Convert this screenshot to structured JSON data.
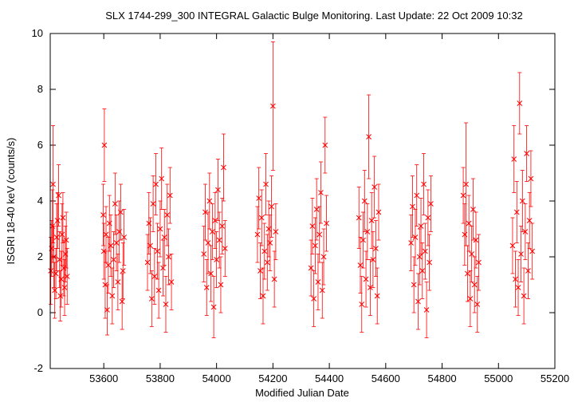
{
  "chart_data": {
    "type": "scatter",
    "title": "SLX 1744-299_300   INTEGRAL Galactic Bulge Monitoring.  Last Update: 22 Oct 2009 10:32",
    "xlabel": "Modified Julian Date",
    "ylabel": "ISGRI 18-40 keV (counts/s)",
    "xlim": [
      53410,
      55200
    ],
    "ylim": [
      -2,
      10
    ],
    "x_ticks": [
      53600,
      53800,
      54000,
      54200,
      54400,
      54600,
      54800,
      55000,
      55200
    ],
    "y_ticks": [
      -2,
      0,
      2,
      4,
      6,
      8,
      10
    ],
    "grid": false,
    "marker": "x",
    "color": "#ff0000",
    "series": [
      {
        "points": [
          [
            53412,
            1.5,
            1.2
          ],
          [
            53415,
            2.3,
            1.0
          ],
          [
            53418,
            3.1,
            1.3
          ],
          [
            53420,
            4.6,
            2.1
          ],
          [
            53423,
            2.0,
            1.1
          ],
          [
            53426,
            0.8,
            1.0
          ],
          [
            53430,
            1.4,
            0.9
          ],
          [
            53433,
            2.7,
            1.2
          ],
          [
            53436,
            3.3,
            1.0
          ],
          [
            53440,
            4.2,
            1.1
          ],
          [
            53443,
            1.9,
            1.0
          ],
          [
            53446,
            0.6,
            0.9
          ],
          [
            53449,
            1.2,
            1.0
          ],
          [
            53452,
            2.8,
            1.1
          ],
          [
            53455,
            3.4,
            0.9
          ],
          [
            53458,
            1.6,
            1.0
          ],
          [
            53461,
            0.9,
            1.0
          ],
          [
            53464,
            2.1,
            1.0
          ],
          [
            53467,
            2.6,
            1.0
          ],
          [
            53470,
            1.3,
            1.0
          ],
          [
            53598,
            3.5,
            1.1
          ],
          [
            53600,
            2.2,
            1.0
          ],
          [
            53602,
            6.0,
            1.3
          ],
          [
            53605,
            1.0,
            1.2
          ],
          [
            53608,
            2.8,
            1.0
          ],
          [
            53612,
            0.1,
            0.9
          ],
          [
            53616,
            1.7,
            1.0
          ],
          [
            53620,
            3.2,
            1.0
          ],
          [
            53625,
            2.4,
            1.1
          ],
          [
            53630,
            0.6,
            1.0
          ],
          [
            53635,
            1.9,
            1.0
          ],
          [
            53640,
            3.9,
            1.1
          ],
          [
            53645,
            2.5,
            1.0
          ],
          [
            53650,
            1.1,
            1.0
          ],
          [
            53655,
            2.9,
            1.1
          ],
          [
            53660,
            3.6,
            1.0
          ],
          [
            53665,
            0.4,
            1.0
          ],
          [
            53668,
            1.5,
            1.0
          ],
          [
            53672,
            2.7,
            1.0
          ],
          [
            53755,
            1.8,
            1.0
          ],
          [
            53760,
            3.2,
            1.1
          ],
          [
            53765,
            2.4,
            1.0
          ],
          [
            53770,
            0.5,
            1.0
          ],
          [
            53775,
            3.9,
            1.0
          ],
          [
            53780,
            1.3,
            1.0
          ],
          [
            53785,
            4.6,
            1.1
          ],
          [
            53790,
            2.2,
            1.0
          ],
          [
            53795,
            0.8,
            1.0
          ],
          [
            53800,
            3.0,
            1.0
          ],
          [
            53805,
            4.8,
            1.1
          ],
          [
            53810,
            1.6,
            1.0
          ],
          [
            53815,
            2.7,
            1.0
          ],
          [
            53820,
            0.3,
            1.0
          ],
          [
            53825,
            3.5,
            1.1
          ],
          [
            53830,
            2.0,
            1.0
          ],
          [
            53835,
            4.2,
            1.0
          ],
          [
            53840,
            1.1,
            1.0
          ],
          [
            53955,
            2.1,
            1.0
          ],
          [
            53960,
            3.6,
            1.0
          ],
          [
            53965,
            0.9,
            1.0
          ],
          [
            53970,
            2.5,
            1.1
          ],
          [
            53975,
            4.0,
            1.0
          ],
          [
            53980,
            1.4,
            1.0
          ],
          [
            53985,
            2.9,
            1.0
          ],
          [
            53990,
            0.2,
            1.1
          ],
          [
            53995,
            3.3,
            1.0
          ],
          [
            54000,
            1.9,
            1.0
          ],
          [
            54005,
            4.4,
            1.1
          ],
          [
            54010,
            2.6,
            1.0
          ],
          [
            54015,
            1.0,
            1.0
          ],
          [
            54020,
            3.1,
            1.0
          ],
          [
            54025,
            5.2,
            1.2
          ],
          [
            54030,
            2.3,
            1.0
          ],
          [
            54145,
            2.8,
            1.0
          ],
          [
            54150,
            4.1,
            1.1
          ],
          [
            54155,
            1.5,
            1.0
          ],
          [
            54160,
            3.4,
            1.0
          ],
          [
            54165,
            0.6,
            1.0
          ],
          [
            54170,
            2.2,
            1.0
          ],
          [
            54175,
            4.6,
            1.1
          ],
          [
            54180,
            1.8,
            1.0
          ],
          [
            54185,
            3.0,
            1.0
          ],
          [
            54190,
            2.5,
            1.0
          ],
          [
            54195,
            3.8,
            1.1
          ],
          [
            54200,
            7.4,
            2.3
          ],
          [
            54205,
            1.2,
            1.0
          ],
          [
            54210,
            2.9,
            1.0
          ],
          [
            54335,
            1.6,
            1.0
          ],
          [
            54340,
            3.1,
            1.0
          ],
          [
            54345,
            0.5,
            1.0
          ],
          [
            54350,
            2.4,
            1.0
          ],
          [
            54355,
            3.7,
            1.1
          ],
          [
            54360,
            1.1,
            1.0
          ],
          [
            54365,
            2.8,
            1.0
          ],
          [
            54370,
            4.3,
            1.1
          ],
          [
            54375,
            0.8,
            1.0
          ],
          [
            54380,
            2.0,
            1.0
          ],
          [
            54385,
            6.0,
            1.0
          ],
          [
            54390,
            3.2,
            1.0
          ],
          [
            54505,
            3.4,
            1.1
          ],
          [
            54510,
            1.7,
            1.0
          ],
          [
            54515,
            0.3,
            1.0
          ],
          [
            54520,
            2.6,
            1.0
          ],
          [
            54525,
            4.0,
            1.1
          ],
          [
            54530,
            1.2,
            1.0
          ],
          [
            54535,
            2.9,
            1.0
          ],
          [
            54540,
            6.3,
            1.5
          ],
          [
            54545,
            0.9,
            1.0
          ],
          [
            54550,
            3.3,
            1.0
          ],
          [
            54555,
            1.9,
            1.0
          ],
          [
            54560,
            4.5,
            1.1
          ],
          [
            54565,
            2.3,
            1.0
          ],
          [
            54570,
            0.6,
            1.0
          ],
          [
            54575,
            3.6,
            1.0
          ],
          [
            54690,
            2.5,
            1.0
          ],
          [
            54695,
            3.8,
            1.1
          ],
          [
            54700,
            1.0,
            1.0
          ],
          [
            54705,
            2.7,
            1.0
          ],
          [
            54710,
            4.2,
            1.1
          ],
          [
            54715,
            0.4,
            1.0
          ],
          [
            54720,
            2.0,
            1.0
          ],
          [
            54725,
            3.1,
            1.0
          ],
          [
            54730,
            1.5,
            1.0
          ],
          [
            54735,
            4.6,
            1.1
          ],
          [
            54740,
            2.2,
            1.0
          ],
          [
            54745,
            0.1,
            1.0
          ],
          [
            54750,
            3.4,
            1.0
          ],
          [
            54755,
            1.8,
            1.0
          ],
          [
            54760,
            3.9,
            1.0
          ],
          [
            54875,
            4.2,
            1.0
          ],
          [
            54880,
            2.8,
            1.1
          ],
          [
            54885,
            4.6,
            2.2
          ],
          [
            54890,
            1.4,
            1.0
          ],
          [
            54895,
            3.2,
            1.0
          ],
          [
            54900,
            0.5,
            1.0
          ],
          [
            54905,
            2.1,
            1.0
          ],
          [
            54910,
            3.7,
            1.1
          ],
          [
            54915,
            1.0,
            1.0
          ],
          [
            54920,
            2.6,
            1.0
          ],
          [
            54925,
            0.3,
            1.0
          ],
          [
            54930,
            1.8,
            1.0
          ],
          [
            55050,
            2.4,
            1.0
          ],
          [
            55055,
            5.5,
            1.2
          ],
          [
            55060,
            1.2,
            1.0
          ],
          [
            55065,
            3.6,
            1.1
          ],
          [
            55070,
            0.9,
            1.0
          ],
          [
            55075,
            7.5,
            1.1
          ],
          [
            55080,
            2.1,
            1.0
          ],
          [
            55085,
            4.0,
            1.1
          ],
          [
            55090,
            0.6,
            1.0
          ],
          [
            55095,
            2.9,
            1.0
          ],
          [
            55100,
            5.7,
            1.0
          ],
          [
            55105,
            1.5,
            1.0
          ],
          [
            55110,
            3.3,
            1.0
          ],
          [
            55115,
            4.8,
            1.0
          ],
          [
            55120,
            2.2,
            1.0
          ]
        ]
      }
    ]
  }
}
